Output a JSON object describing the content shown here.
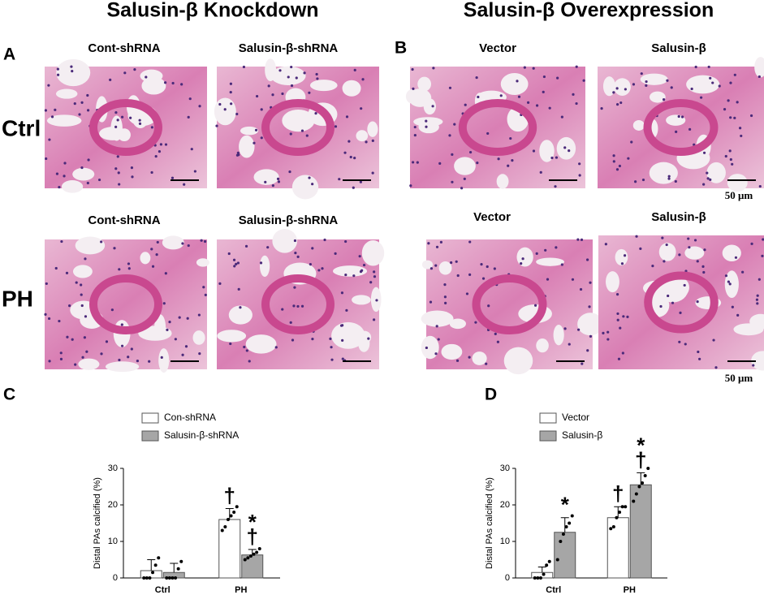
{
  "panels": [
    {
      "letter": "A",
      "title": "Salusin-β Knockdown",
      "rows": [
        {
          "label": "Ctrl",
          "images": [
            "Cont-shRNA",
            "Salusin-β-shRNA"
          ]
        },
        {
          "label": "PH",
          "images": [
            "Cont-shRNA",
            "Salusin-β-shRNA"
          ]
        }
      ]
    },
    {
      "letter": "B",
      "title": "Salusin-β Overexpression",
      "rows": [
        {
          "images": [
            "Vector",
            "Salusin-β"
          ],
          "scale_bar": "50 μm"
        },
        {
          "images": [
            "Vector",
            "Salusin-β"
          ],
          "scale_bar": "50 μm"
        }
      ]
    }
  ],
  "chart_data": [
    {
      "type": "bar",
      "panel_label": "C",
      "y_label": "Distal PAs calcified (%)",
      "categories": [
        "Ctrl",
        "PH"
      ],
      "ylim": [
        0,
        30
      ],
      "yticks": [
        0,
        10,
        20,
        30
      ],
      "series": [
        {
          "name": "Con-shRNA",
          "color": "#ffffff",
          "values": [
            2,
            16
          ],
          "errors": [
            3,
            3
          ],
          "points": [
            [
              0,
              0,
              0,
              1.5,
              3.5,
              5.5
            ],
            [
              13,
              14,
              16,
              17,
              18,
              19.5
            ]
          ],
          "annotations": [
            [],
            [
              "†"
            ]
          ]
        },
        {
          "name": "Salusin-β-shRNA",
          "color": "#a6a6a6",
          "values": [
            1.5,
            6.3
          ],
          "errors": [
            2.5,
            1.5
          ],
          "points": [
            [
              0,
              0,
              0,
              0,
              2.5,
              4.5
            ],
            [
              5,
              5.5,
              6,
              6.5,
              7,
              8
            ]
          ],
          "annotations": [
            [],
            [
              "*",
              "†"
            ]
          ]
        }
      ]
    },
    {
      "type": "bar",
      "panel_label": "D",
      "y_label": "Distal PAs calcified (%)",
      "categories": [
        "Ctrl",
        "PH"
      ],
      "ylim": [
        0,
        30
      ],
      "yticks": [
        0,
        10,
        20,
        30
      ],
      "series": [
        {
          "name": "Vector",
          "color": "#ffffff",
          "values": [
            1.5,
            16.5
          ],
          "errors": [
            1.5,
            3
          ],
          "points": [
            [
              0,
              0,
              0,
              1,
              3.5,
              4.5
            ],
            [
              13.5,
              14,
              16.5,
              18,
              19.5,
              19.5
            ]
          ],
          "annotations": [
            [],
            [
              "†"
            ]
          ]
        },
        {
          "name": "Salusin-β",
          "color": "#a6a6a6",
          "values": [
            12.5,
            25.5
          ],
          "errors": [
            4,
            3.3
          ],
          "points": [
            [
              5,
              10,
              12,
              14,
              15,
              17
            ],
            [
              21,
              23,
              25,
              26,
              28,
              30
            ]
          ],
          "annotations": [
            [
              "*"
            ],
            [
              "*",
              "†"
            ]
          ]
        }
      ]
    }
  ]
}
